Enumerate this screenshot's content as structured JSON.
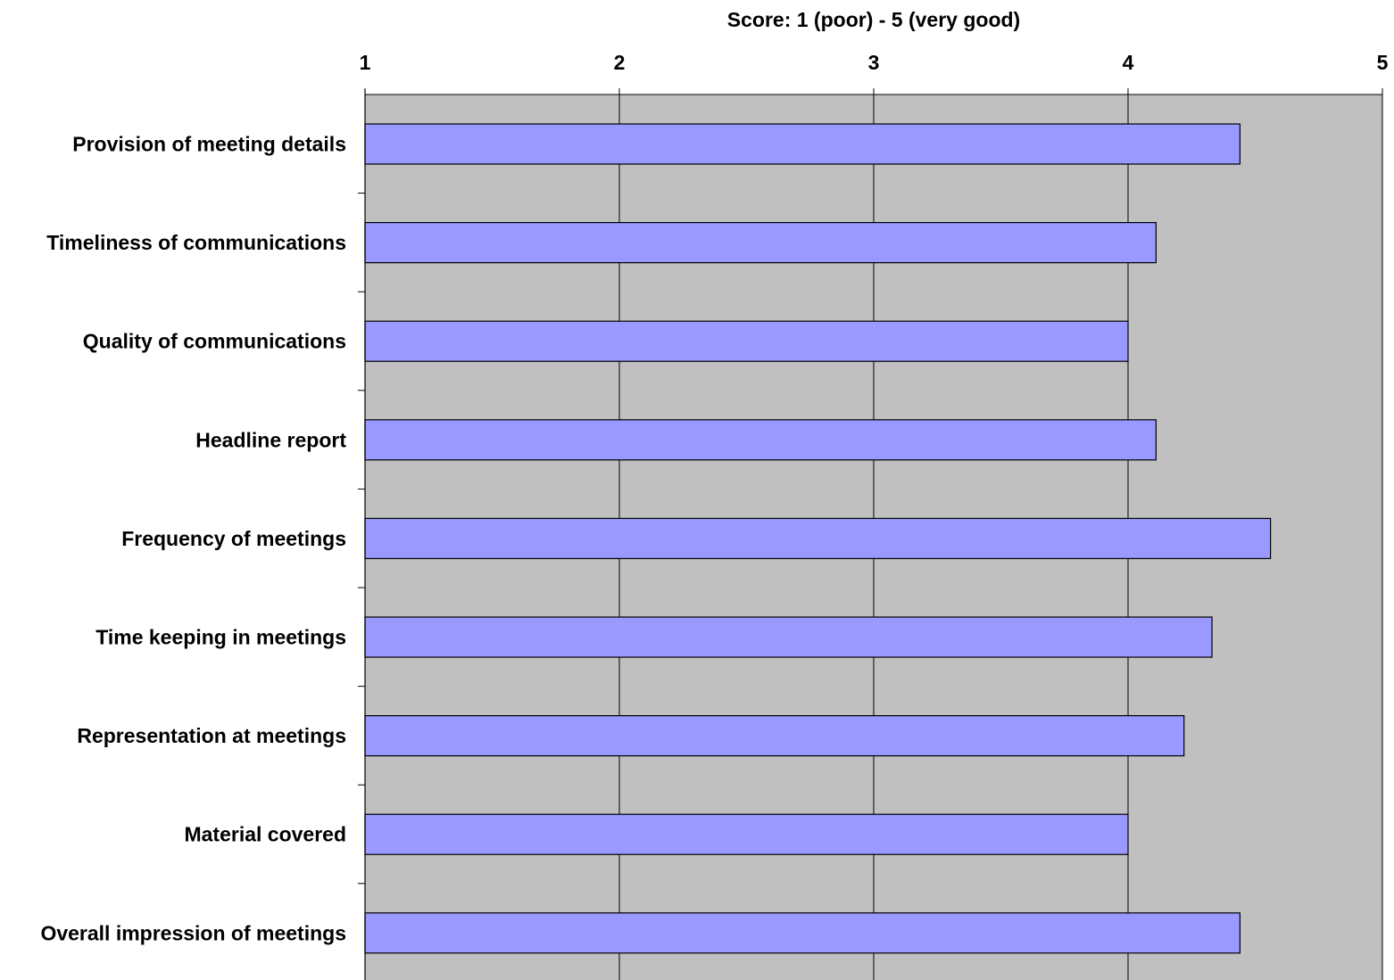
{
  "chart_data": {
    "type": "bar",
    "orientation": "horizontal",
    "xlabel": "Score: 1 (poor) - 5 (very good)",
    "xlim": [
      1,
      5
    ],
    "xticks": [
      1,
      2,
      3,
      4,
      5
    ],
    "grid": true,
    "categories": [
      "Provision of meeting details",
      "Timeliness of communications",
      "Quality of communications",
      "Headline report",
      "Frequency of meetings",
      "Time keeping in meetings",
      "Representation at meetings",
      "Material covered",
      "Overall impression of meetings"
    ],
    "values": [
      4.44,
      4.11,
      4.0,
      4.11,
      4.56,
      4.33,
      4.22,
      4.0,
      4.44
    ],
    "colors": {
      "bar_fill": "#9999ff",
      "bar_stroke": "#000000",
      "plot_background": "#c0c0c0",
      "gridline": "#000000"
    }
  }
}
